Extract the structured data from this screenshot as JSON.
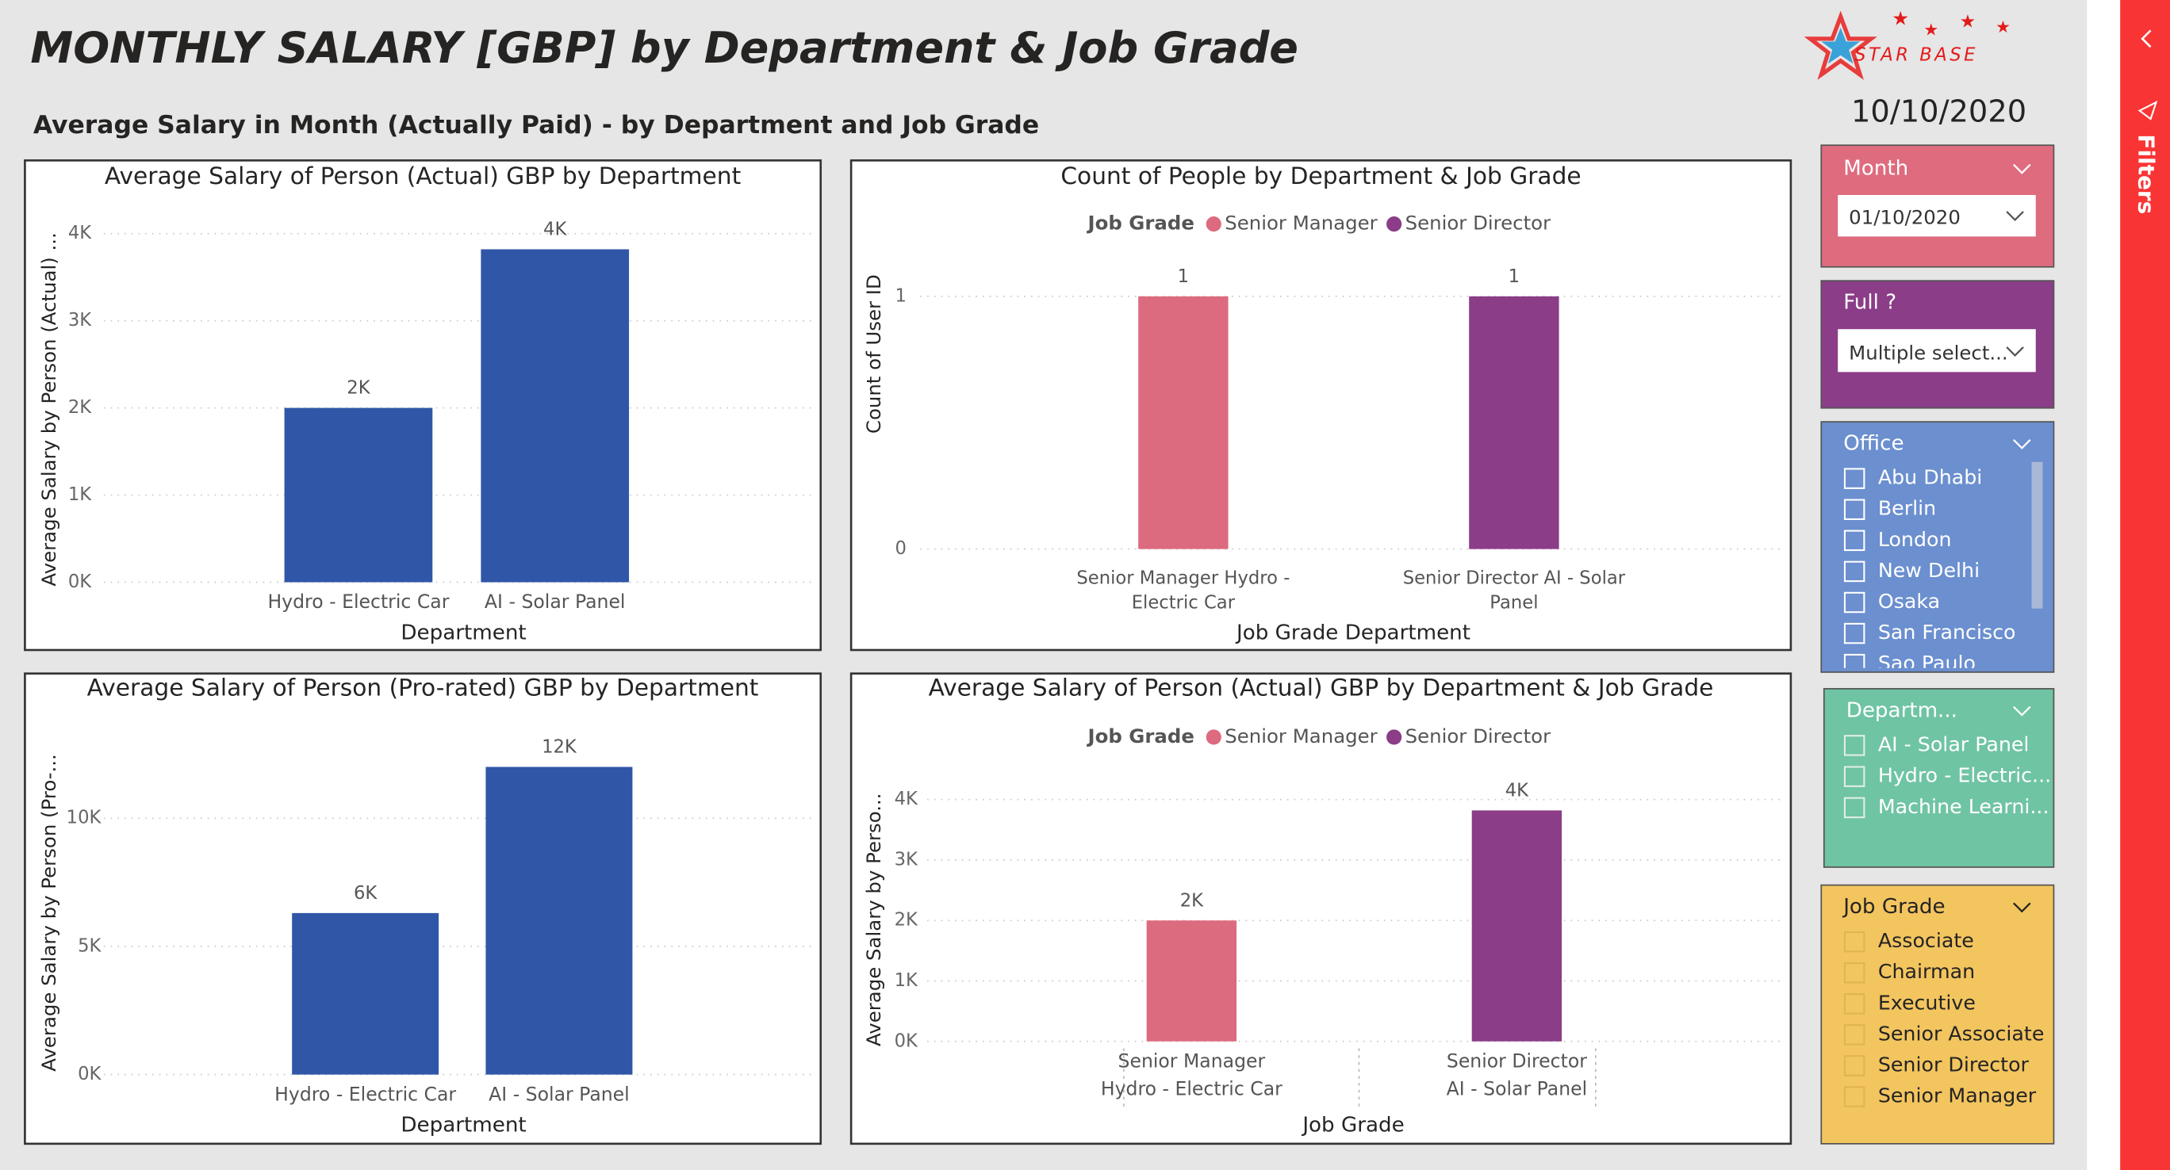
{
  "header": {
    "title": "MONTHLY SALARY [GBP] by Department & Job Grade",
    "subtitle": "Average Salary in Month (Actually Paid) - by Department and Job Grade",
    "logo": "STAR BASE",
    "date": "10/10/2020"
  },
  "filters": {
    "label": "Filters"
  },
  "slicers": [
    {
      "title": "Month",
      "value": "01/10/2020"
    },
    {
      "title": "Full ?",
      "value": "Multiple select..."
    },
    {
      "title": "Office",
      "items": [
        "Abu Dhabi",
        "Berlin",
        "London",
        "New Delhi",
        "Osaka",
        "San Francisco",
        "Sao Paulo"
      ]
    },
    {
      "title": "Departm...",
      "items": [
        "AI - Solar Panel",
        "Hydro - Electric...",
        "Machine Learni..."
      ]
    },
    {
      "title": "Job Grade",
      "items": [
        "Associate",
        "Chairman",
        "Executive",
        "Senior Associate",
        "Senior Director",
        "Senior Manager"
      ]
    }
  ],
  "chart_data": [
    {
      "type": "bar",
      "title": "Average Salary of Person (Actual) GBP by Department",
      "x_label": "Department",
      "y_label": "Average Salary by Person (Actual) ...",
      "categories": [
        "Hydro - Electric Car",
        "AI - Solar Panel"
      ],
      "values": [
        2000,
        3820
      ],
      "value_labels": [
        "2K",
        "4K"
      ],
      "color": "#3056a8",
      "ylim": [
        0,
        4300
      ],
      "yticks": [
        {
          "value": 0,
          "label": "0K"
        },
        {
          "value": 1000,
          "label": "1K"
        },
        {
          "value": 2000,
          "label": "2K"
        },
        {
          "value": 3000,
          "label": "3K"
        },
        {
          "value": 4000,
          "label": "4K"
        }
      ],
      "grid": true
    },
    {
      "type": "grouped_bar",
      "title": "Count of People by Department & Job Grade",
      "x_label": "Job Grade Department",
      "y_label": "Count of User ID",
      "legend_title": "Job Grade",
      "categories": [
        "Senior Manager Hydro - Electric Car",
        "Senior Director AI - Solar Panel"
      ],
      "series": [
        {
          "name": "Senior Manager",
          "color": "#dd6b7f",
          "values": [
            1,
            null
          ],
          "value_labels": [
            "1",
            null
          ]
        },
        {
          "name": "Senior Director",
          "color": "#8b3d88",
          "values": [
            null,
            1
          ],
          "value_labels": [
            null,
            "1"
          ]
        }
      ],
      "ylim": [
        0,
        1.1
      ],
      "yticks": [
        0,
        1
      ],
      "grid": true
    },
    {
      "type": "bar",
      "title": "Average Salary of Person (Pro-rated) GBP by Department",
      "x_label": "Department",
      "y_label": "Average Salary by Person (Pro-...",
      "categories": [
        "Hydro - Electric Car",
        "AI - Solar Panel"
      ],
      "values": [
        6300,
        12000
      ],
      "value_labels": [
        "6K",
        "12K"
      ],
      "color": "#3056a8",
      "ylim": [
        0,
        13000
      ],
      "yticks": [
        {
          "value": 0,
          "label": "0K"
        },
        {
          "value": 5000,
          "label": "5K"
        },
        {
          "value": 10000,
          "label": "10K"
        }
      ],
      "grid": true
    },
    {
      "type": "grouped_bar",
      "title": "Average Salary of Person (Actual) GBP by Department & Job Grade",
      "x_label": "Job Grade",
      "y_label": "Average Salary by Perso...",
      "legend_title": "Job Grade",
      "categories": [
        "Senior Manager",
        "Senior Director"
      ],
      "subcategories": [
        "Hydro - Electric Car",
        "AI - Solar Panel"
      ],
      "series": [
        {
          "name": "Senior Manager",
          "color": "#dd6b7f",
          "values": [
            2000,
            null
          ],
          "value_labels": [
            "2K",
            null
          ]
        },
        {
          "name": "Senior Director",
          "color": "#8b3d88",
          "values": [
            null,
            3820
          ],
          "value_labels": [
            null,
            "4K"
          ]
        }
      ],
      "ylim": [
        0,
        4300
      ],
      "yticks": [
        {
          "value": 0,
          "label": "0K"
        },
        {
          "value": 1000,
          "label": "1K"
        },
        {
          "value": 2000,
          "label": "2K"
        },
        {
          "value": 3000,
          "label": "3K"
        },
        {
          "value": 4000,
          "label": "4K"
        }
      ],
      "grid": true
    }
  ]
}
